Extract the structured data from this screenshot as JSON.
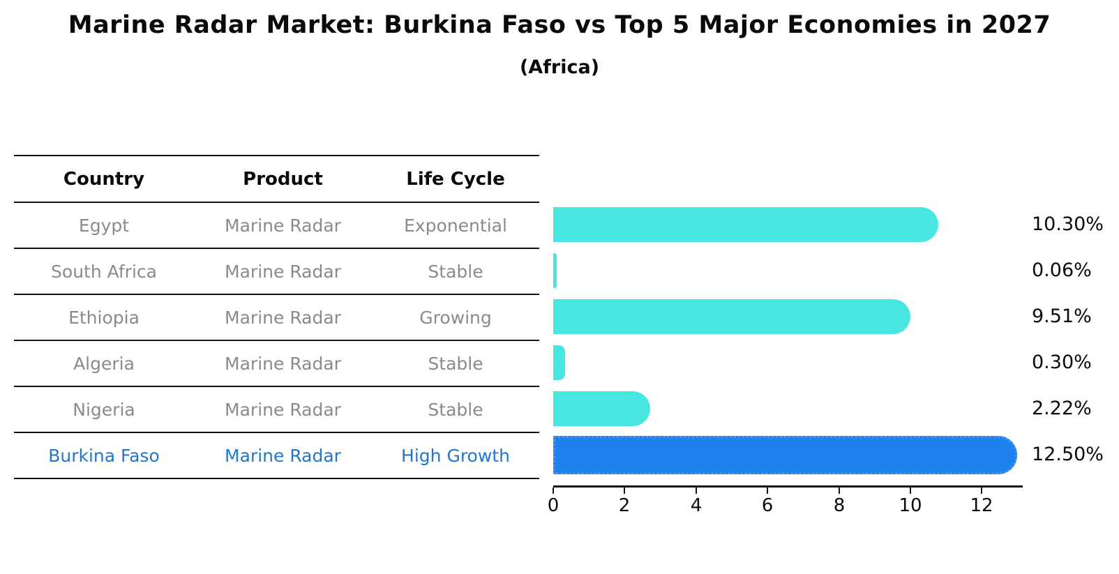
{
  "title": "Marine Radar Market: Burkina Faso vs Top 5 Major Economies in 2027",
  "subtitle": "(Africa)",
  "table": {
    "headers": [
      "Country",
      "Product",
      "Life Cycle"
    ],
    "rows": [
      {
        "country": "Egypt",
        "product": "Marine Radar",
        "life_cycle": "Exponential",
        "highlight": false
      },
      {
        "country": "South Africa",
        "product": "Marine Radar",
        "life_cycle": "Stable",
        "highlight": false
      },
      {
        "country": "Ethiopia",
        "product": "Marine Radar",
        "life_cycle": "Growing",
        "highlight": false
      },
      {
        "country": "Algeria",
        "product": "Marine Radar",
        "life_cycle": "Stable",
        "highlight": false
      },
      {
        "country": "Nigeria",
        "product": "Marine Radar",
        "life_cycle": "Stable",
        "highlight": false
      },
      {
        "country": "Burkina Faso",
        "product": "Marine Radar",
        "life_cycle": "High Growth",
        "highlight": true
      }
    ]
  },
  "chart_data": {
    "type": "bar",
    "orientation": "horizontal",
    "title": "Marine Radar Market: Burkina Faso vs Top 5 Major Economies in 2027",
    "subtitle": "(Africa)",
    "categories": [
      "Egypt",
      "South Africa",
      "Ethiopia",
      "Algeria",
      "Nigeria",
      "Burkina Faso"
    ],
    "values": [
      10.3,
      0.06,
      9.51,
      0.3,
      2.22,
      12.5
    ],
    "value_labels": [
      "10.30%",
      "0.06%",
      "9.51%",
      "0.30%",
      "2.22%",
      "12.50%"
    ],
    "unit": "%",
    "xlabel": "",
    "ylabel": "",
    "xticks": [
      0,
      2,
      4,
      6,
      8,
      10,
      12
    ],
    "xlim": [
      0,
      13.1
    ],
    "grid": false,
    "legend": "none",
    "highlight_index": 5,
    "colors": {
      "bar": "#47e6e0",
      "highlight_bar": "#1e82ed",
      "highlight_border": "#3c97f0",
      "highlight_text": "#1f77cf",
      "row_text": "#8a8a8a",
      "text": "#0a0a0a"
    }
  }
}
